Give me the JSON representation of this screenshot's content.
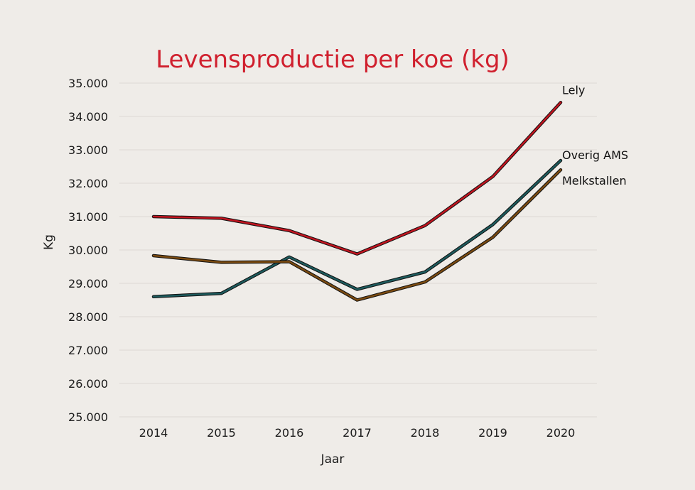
{
  "chart_data": {
    "type": "line",
    "title": "Levensproductie per koe (kg)",
    "xlabel": "Jaar",
    "ylabel": "Kg",
    "x": [
      "2014",
      "2015",
      "2016",
      "2017",
      "2018",
      "2019",
      "2020"
    ],
    "ylim": [
      25000,
      35000
    ],
    "yticks": [
      25000,
      26000,
      27000,
      28000,
      29000,
      30000,
      31000,
      32000,
      33000,
      34000,
      35000
    ],
    "ytick_labels": [
      "25.000",
      "26.000",
      "27.000",
      "28.000",
      "29.000",
      "30.000",
      "31.000",
      "32.000",
      "33.000",
      "34.000",
      "35.000"
    ],
    "grid": true,
    "legend": "labels at line ends",
    "series": [
      {
        "name": "Lely",
        "color": "#c0141f",
        "values": [
          31000,
          30950,
          30580,
          29880,
          30730,
          32200,
          34420
        ]
      },
      {
        "name": "Overig AMS",
        "color": "#1d5a5c",
        "values": [
          28600,
          28700,
          29790,
          28820,
          29340,
          30760,
          32680
        ]
      },
      {
        "name": "Melkstallen",
        "color": "#7a4a10",
        "values": [
          29830,
          29630,
          29650,
          28500,
          29040,
          30380,
          32400
        ]
      }
    ],
    "title_color": "#d0202e",
    "background": "#efece8",
    "grid_color": "#dcd8d3"
  }
}
